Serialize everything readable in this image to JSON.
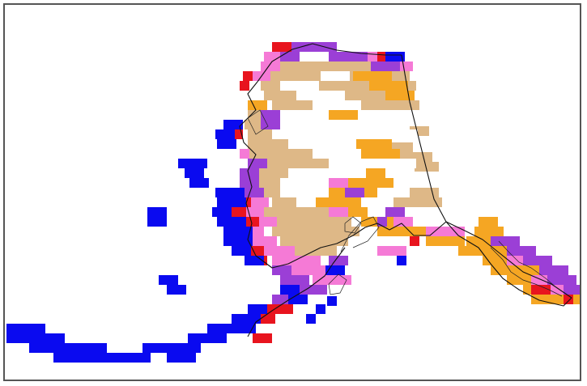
{
  "map": {
    "region": "Alaska",
    "legend_visible": false,
    "colors": {
      "white": "#ffffff",
      "tan": "#deb887",
      "orange": "#f5a623",
      "pink": "#f57ad6",
      "purple": "#9b3fd6",
      "red": "#e8141e",
      "blue": "#0a0af0",
      "border": "#111111"
    }
  }
}
